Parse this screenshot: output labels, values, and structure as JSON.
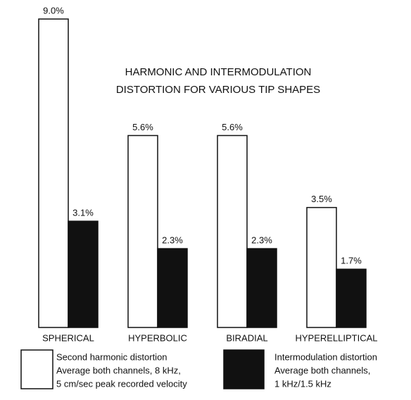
{
  "chart_data": {
    "type": "bar",
    "title": [
      "HARMONIC AND INTERMODULATION",
      "DISTORTION FOR VARIOUS TIP SHAPES"
    ],
    "categories": [
      "SPHERICAL",
      "HYPERBOLIC",
      "BIRADIAL",
      "HYPERELLIPTICAL"
    ],
    "series": [
      {
        "name": "Second harmonic distortion",
        "note": [
          "Average both channels, 8 kHz,",
          "5 cm/sec peak recorded velocity"
        ],
        "color": "#ffffff",
        "values": [
          9.0,
          5.6,
          5.6,
          3.5
        ],
        "value_labels": [
          "9.0%",
          "5.6%",
          "5.6%",
          "3.5%"
        ]
      },
      {
        "name": "Intermodulation distortion",
        "note": [
          "Average both channels,",
          "1 kHz/1.5 kHz"
        ],
        "color": "#111111",
        "values": [
          3.1,
          2.3,
          2.3,
          1.7
        ],
        "value_labels": [
          "3.1%",
          "2.3%",
          "2.3%",
          "1.7%"
        ]
      }
    ]
  }
}
